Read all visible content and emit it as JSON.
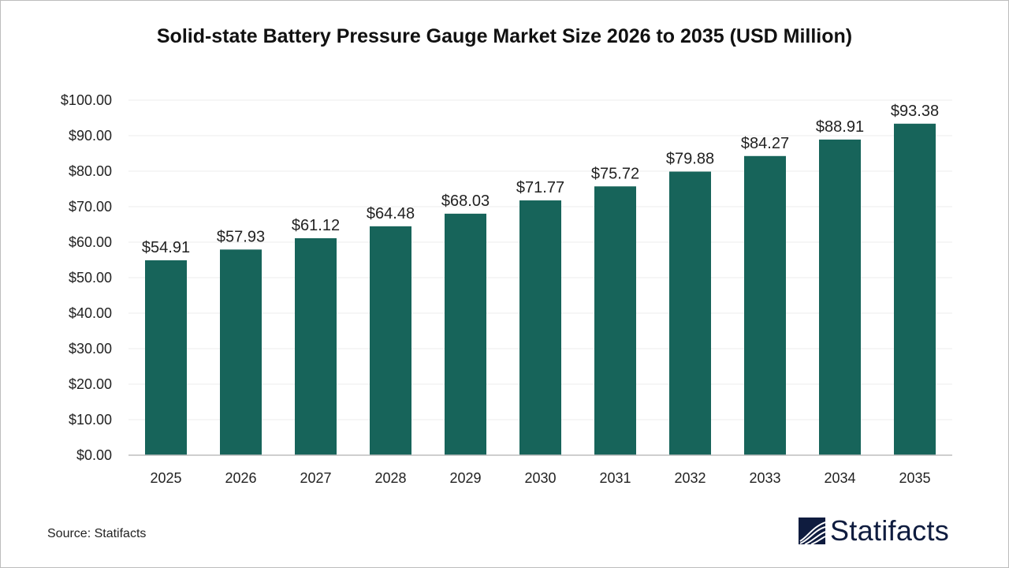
{
  "chart_data": {
    "type": "bar",
    "title": "Solid-state Battery Pressure Gauge Market Size 2026 to 2035 (USD Million)",
    "categories": [
      "2025",
      "2026",
      "2027",
      "2028",
      "2029",
      "2030",
      "2031",
      "2032",
      "2033",
      "2034",
      "2035"
    ],
    "values": [
      54.91,
      57.93,
      61.12,
      64.48,
      68.03,
      71.77,
      75.72,
      79.88,
      84.27,
      88.91,
      93.38
    ],
    "data_labels": [
      "$54.91",
      "$57.93",
      "$61.12",
      "$64.48",
      "$68.03",
      "$71.77",
      "$75.72",
      "$79.88",
      "$84.27",
      "$88.91",
      "$93.38"
    ],
    "yticks": [
      "$0.00",
      "$10.00",
      "$20.00",
      "$30.00",
      "$40.00",
      "$50.00",
      "$60.00",
      "$70.00",
      "$80.00",
      "$90.00",
      "$100.00"
    ],
    "ylim": [
      0,
      100
    ],
    "xlabel": "",
    "ylabel": "",
    "grid": true,
    "bar_color": "#17645a"
  },
  "source": "Source: Statifacts",
  "logo": {
    "text": "Statifacts",
    "color": "#0f1c3f"
  }
}
